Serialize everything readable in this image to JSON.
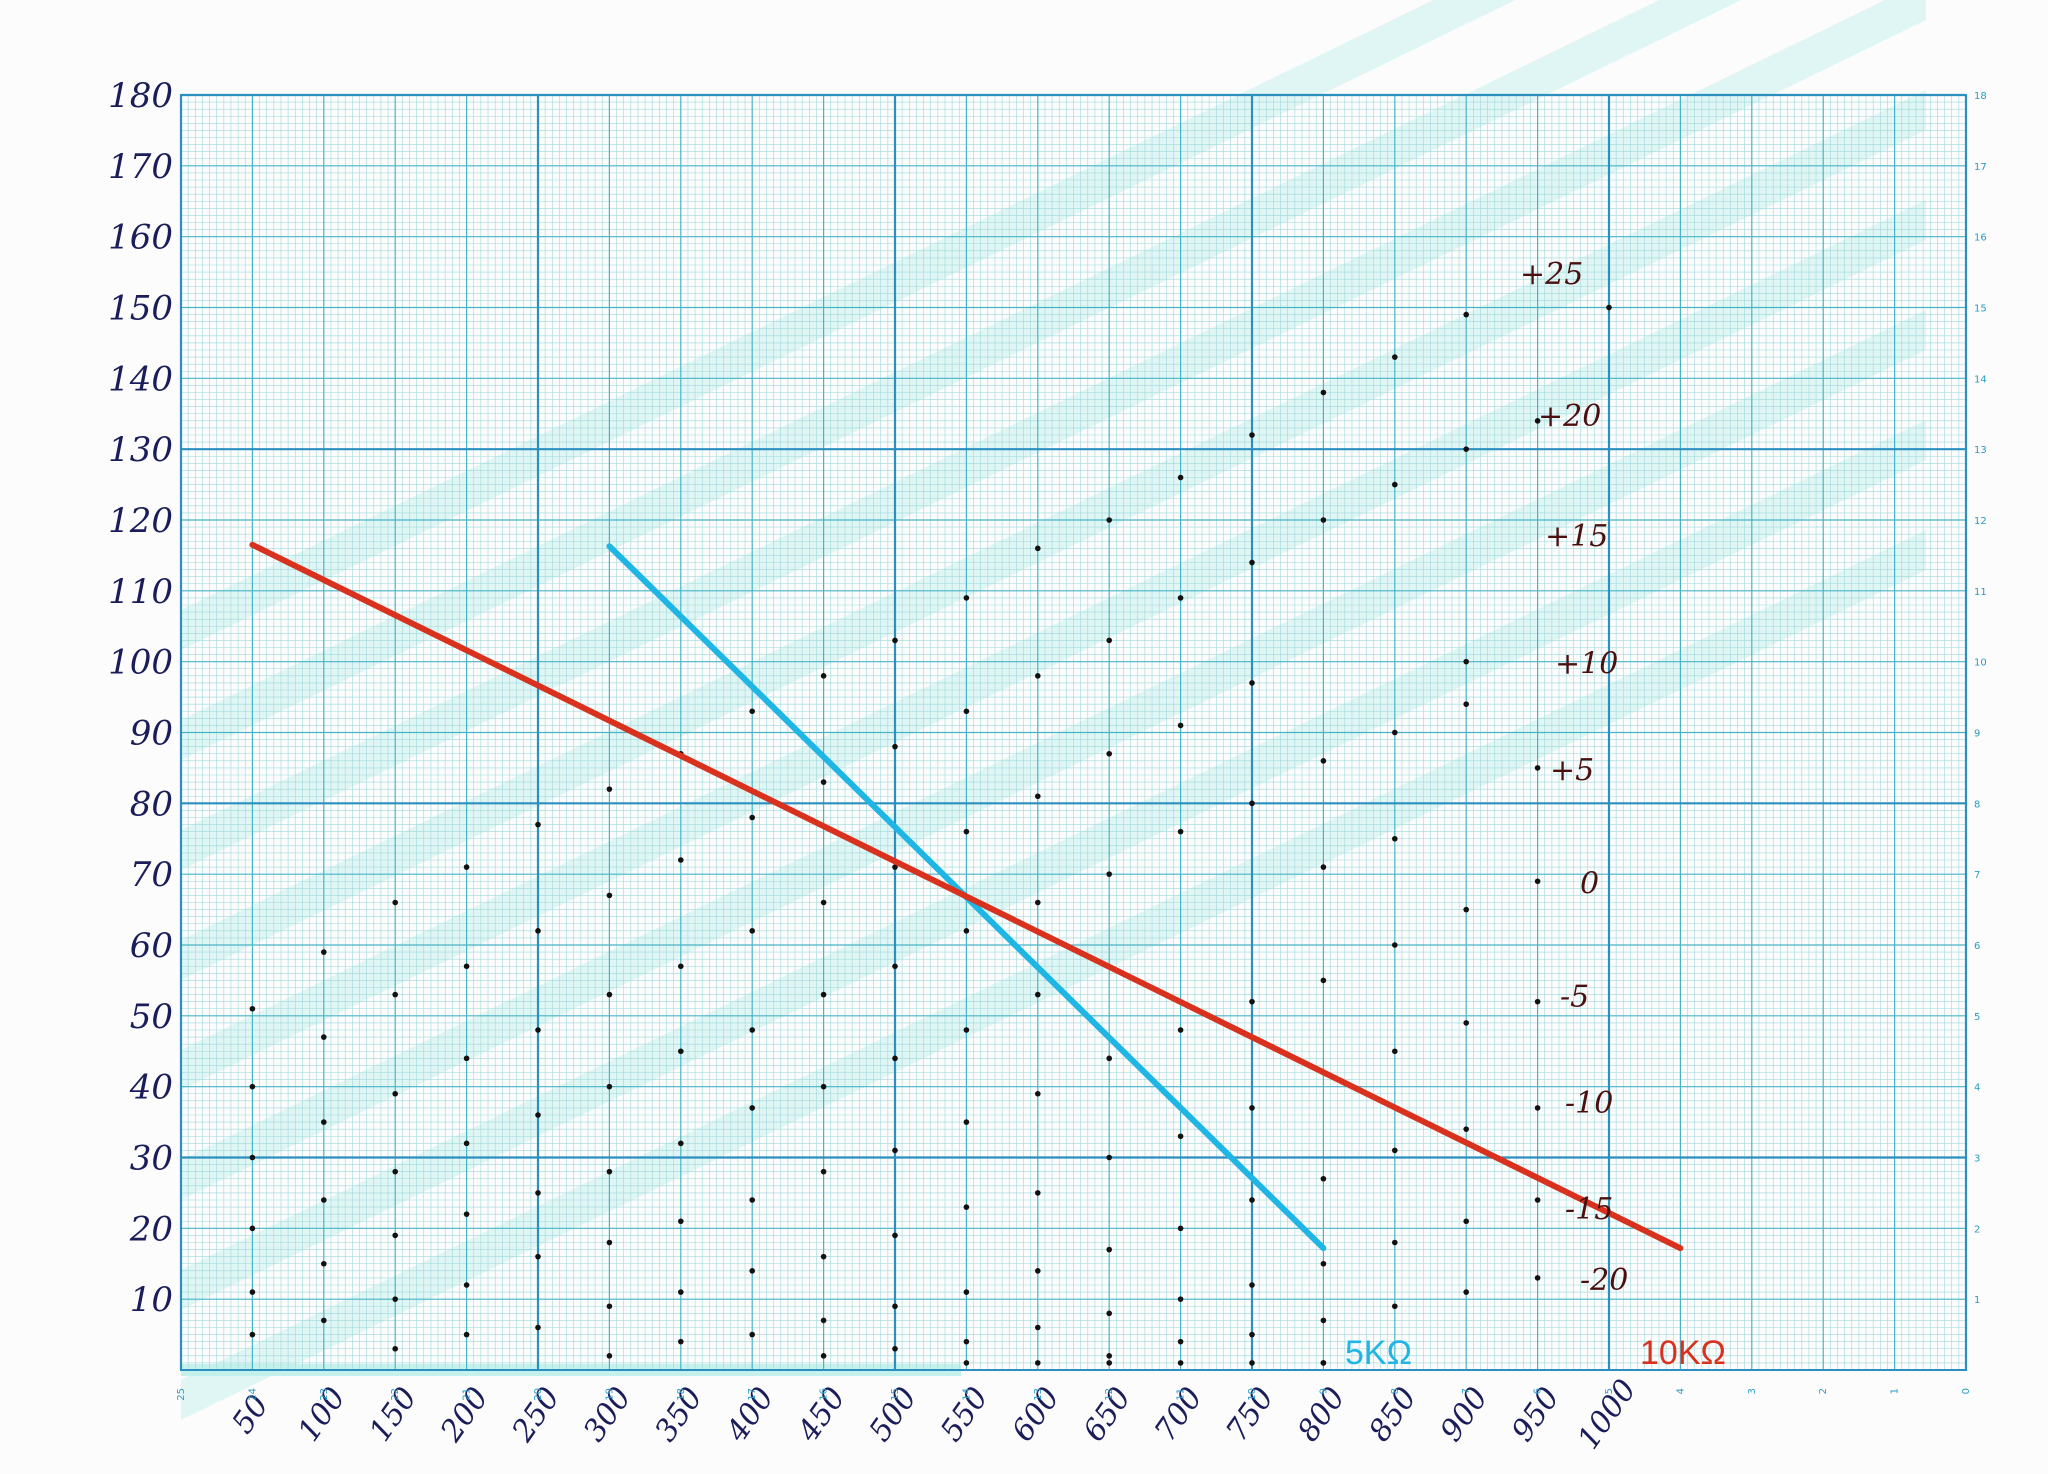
{
  "chart_data": {
    "type": "line",
    "title": "",
    "xlabel": "",
    "ylabel": "",
    "xlim": [
      0,
      1250
    ],
    "ylim": [
      0,
      180
    ],
    "grid": true,
    "x_ticks": [
      "50",
      "100",
      "150",
      "200",
      "250",
      "300",
      "350",
      "400",
      "450",
      "500",
      "550",
      "600",
      "650",
      "700",
      "750",
      "800",
      "850",
      "900",
      "950",
      "1000"
    ],
    "y_ticks": [
      "10",
      "20",
      "30",
      "40",
      "50",
      "60",
      "70",
      "80",
      "90",
      "100",
      "110",
      "120",
      "130",
      "140",
      "150",
      "160",
      "170",
      "180"
    ],
    "right_axis_ticks": [
      "1",
      "2",
      "3",
      "4",
      "5",
      "6",
      "7",
      "8",
      "9",
      "10",
      "11",
      "12",
      "13",
      "14",
      "15",
      "16",
      "17",
      "18"
    ],
    "bottom_axis_ticks": [
      "25",
      "24",
      "23",
      "22",
      "21",
      "20",
      "19",
      "18",
      "17",
      "16",
      "15",
      "14",
      "13",
      "12",
      "11",
      "10",
      "9",
      "8",
      "7",
      "6",
      "5",
      "4",
      "3",
      "2",
      "1",
      "0"
    ],
    "series": [
      {
        "name": "5KΩ",
        "color": "#1fb6e6",
        "x": [
          300,
          800
        ],
        "y": [
          116.3,
          17.2
        ]
      },
      {
        "name": "10KΩ",
        "color": "#d8321f",
        "x": [
          50,
          1050
        ],
        "y": [
          116.5,
          17.2
        ]
      }
    ],
    "offset_labels": [
      "+25",
      "+20",
      "+15",
      "+10",
      "+5",
      "0",
      "-5",
      "-10",
      "-15",
      "-20"
    ],
    "offset_dots": [
      {
        "label": "+25",
        "x": [
          1000
        ],
        "y": [
          150
        ]
      },
      {
        "label": "+20",
        "x": [
          800,
          850,
          900,
          950
        ],
        "y": [
          138,
          143,
          130,
          134
        ]
      },
      {
        "label": "+15",
        "x": [
          550,
          600,
          650,
          700,
          750,
          800,
          850,
          900
        ],
        "y": [
          109,
          116,
          120,
          126,
          132,
          120,
          125,
          149
        ]
      },
      {
        "label": "+10",
        "x": [
          450,
          500,
          550,
          600,
          650,
          700,
          750,
          800,
          850,
          900
        ],
        "y": [
          98,
          103,
          93,
          98,
          103,
          109,
          114,
          86,
          90,
          100
        ]
      },
      {
        "label": "+5",
        "x": [
          300,
          350,
          400,
          450,
          500,
          550,
          600,
          650,
          700,
          750,
          800,
          850,
          900,
          950
        ],
        "y": [
          82,
          87,
          93,
          83,
          88,
          76,
          81,
          87,
          91,
          97,
          71,
          75,
          94,
          85
        ]
      },
      {
        "label": "0",
        "x": [
          150,
          200,
          250,
          300,
          350,
          400,
          450,
          500,
          550,
          600,
          650,
          700,
          750,
          800,
          850,
          900,
          950
        ],
        "y": [
          66,
          71,
          77,
          67,
          72,
          78,
          66,
          71,
          62,
          66,
          70,
          76,
          80,
          55,
          60,
          65,
          69
        ]
      },
      {
        "label": "-5",
        "x": [
          50,
          100,
          150,
          200,
          250,
          300,
          350,
          400,
          450,
          500,
          550,
          600,
          650,
          700,
          750,
          800,
          850,
          900,
          950
        ],
        "y": [
          51,
          59,
          53,
          57,
          62,
          53,
          57,
          62,
          53,
          57,
          48,
          53,
          44,
          48,
          52,
          42,
          45,
          49,
          52
        ]
      },
      {
        "label": "-10",
        "x": [
          50,
          100,
          150,
          200,
          250,
          300,
          350,
          400,
          450,
          500,
          550,
          600,
          650,
          700,
          750,
          800,
          850,
          900,
          950
        ],
        "y": [
          40,
          47,
          39,
          44,
          48,
          40,
          45,
          48,
          40,
          44,
          35,
          39,
          30,
          33,
          37,
          27,
          31,
          34,
          37
        ]
      },
      {
        "label": "-15",
        "x": [
          50,
          100,
          150,
          200,
          250,
          300,
          350,
          400,
          450,
          500,
          550,
          600,
          650,
          700,
          750,
          800,
          850,
          900,
          950
        ],
        "y": [
          30,
          35,
          28,
          32,
          36,
          28,
          32,
          37,
          28,
          31,
          23,
          25,
          17,
          20,
          24,
          15,
          18,
          21,
          24
        ]
      },
      {
        "label": "-20",
        "x": [
          50,
          100,
          150,
          200,
          250,
          300,
          350,
          400,
          450,
          500,
          550,
          600,
          650,
          700,
          750,
          800,
          850,
          900,
          950
        ],
        "y": [
          20,
          24,
          19,
          22,
          25,
          18,
          21,
          24,
          16,
          19,
          11,
          14,
          8,
          10,
          12,
          7,
          9,
          11,
          13
        ]
      },
      {
        "label": "",
        "x": [
          50,
          50,
          100,
          100,
          150,
          150,
          200,
          200,
          250,
          250,
          300,
          300,
          350,
          350,
          400,
          400,
          450,
          450,
          500,
          500,
          550,
          550,
          600,
          600,
          650,
          650,
          700,
          700,
          750,
          750,
          800,
          800
        ],
        "y": [
          11,
          5,
          15,
          7,
          10,
          3,
          12,
          5,
          16,
          6,
          9,
          2,
          11,
          4,
          14,
          5,
          7,
          2,
          9,
          3,
          4,
          1,
          6,
          1,
          2,
          1,
          4,
          1,
          5,
          1,
          1,
          1
        ]
      }
    ]
  },
  "legend": {
    "series_5k_label": "5KΩ",
    "series_10k_label": "10KΩ"
  },
  "colors": {
    "paper": "#fbfcfb",
    "grid_fine": "#9fd8dc",
    "grid_mid": "#49b4c8",
    "grid_major": "#2b8fc0",
    "band": "#bff0ea",
    "ink": "#1a1d5a",
    "dot": "#111111"
  }
}
